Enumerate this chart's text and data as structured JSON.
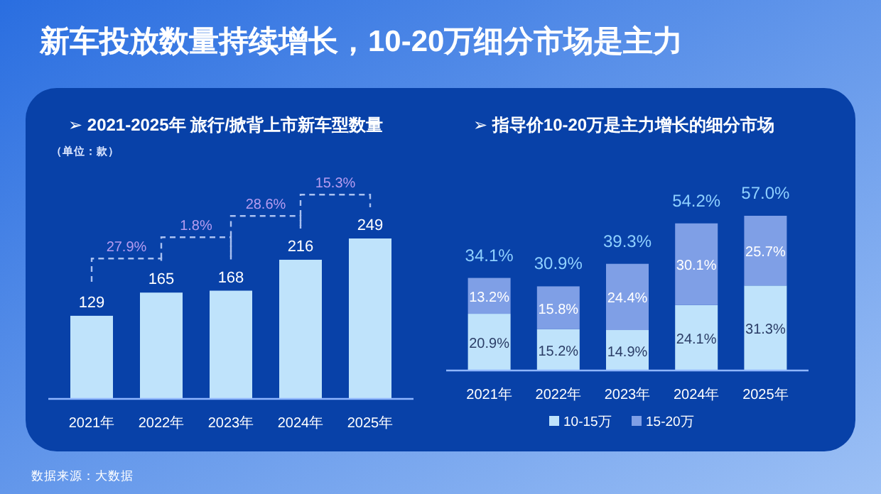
{
  "chart_data": [
    {
      "type": "bar",
      "title": "新车投放数量持续增长，10-20万细分市场是主力",
      "subtitle": "➢ 2021-2025年 旅行/掀背上市新车型数量",
      "ylabel": "（单位：款）",
      "categories": [
        "2021年",
        "2022年",
        "2023年",
        "2024年",
        "2025年"
      ],
      "values": [
        129,
        165,
        168,
        216,
        249
      ],
      "color": "#bfe3fb",
      "data_labels": true,
      "annotations": [
        "27.9%",
        "1.8%",
        "28.6%",
        "15.3%"
      ]
    },
    {
      "type": "bar",
      "title": "➢ 指导价10-20万是主力增长的细分市场",
      "categories": [
        "2021年",
        "2022年",
        "2023年",
        "2024年",
        "2025年"
      ],
      "stacked": true,
      "series": [
        {
          "name": "10-15万",
          "color": "#bfe3fb",
          "values": [
            20.9,
            15.2,
            14.9,
            24.1,
            31.3
          ],
          "value_labels": [
            "20.9%",
            "15.2%",
            "14.9%",
            "24.1%",
            "31.3%"
          ]
        },
        {
          "name": "15-20万",
          "color": "#7f9fe6",
          "values": [
            13.2,
            15.8,
            24.4,
            30.1,
            25.7
          ],
          "value_labels": [
            "13.2%",
            "15.8%",
            "24.4%",
            "30.1%",
            "25.7%"
          ]
        }
      ],
      "totals": [
        "34.1%",
        "30.9%",
        "39.3%",
        "54.2%",
        "57.0%"
      ],
      "legend": "bottom",
      "annotations": [
        "数据来源：大数据"
      ]
    }
  ]
}
